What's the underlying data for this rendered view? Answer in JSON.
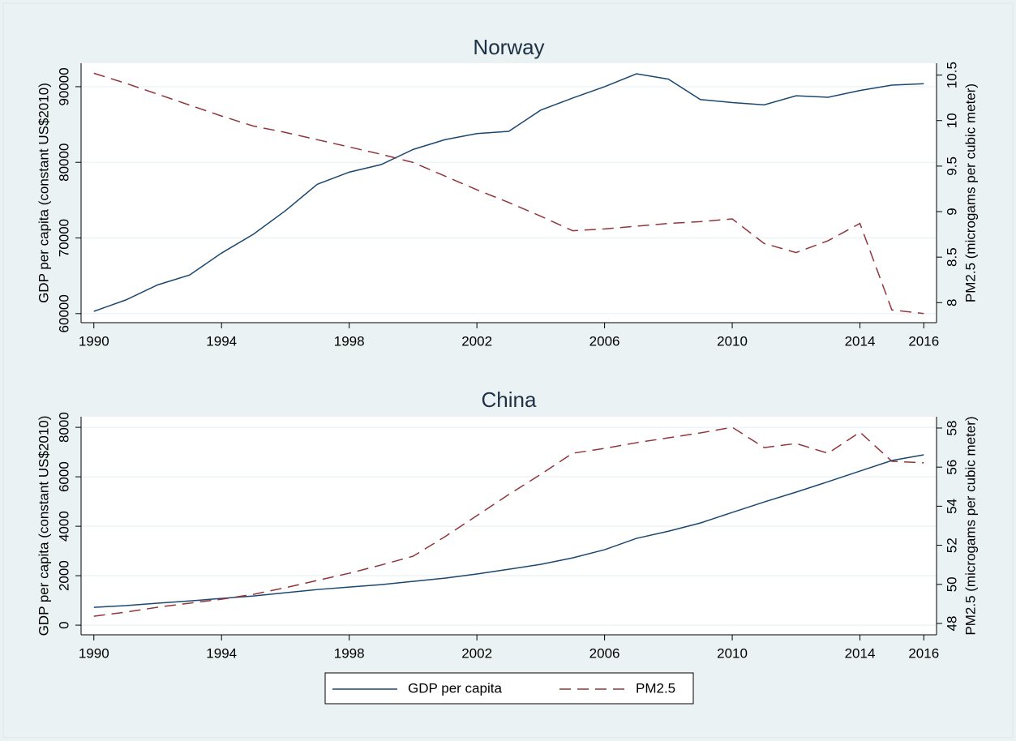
{
  "chart_data": [
    {
      "type": "line",
      "title": "Norway",
      "x": [
        1990,
        1991,
        1992,
        1993,
        1994,
        1995,
        1996,
        1997,
        1998,
        1999,
        2000,
        2001,
        2002,
        2003,
        2004,
        2005,
        2006,
        2007,
        2008,
        2009,
        2010,
        2011,
        2012,
        2013,
        2014,
        2015,
        2016
      ],
      "xlim": [
        1989.6,
        2016.4
      ],
      "xticks": [
        1990,
        1994,
        1998,
        2002,
        2006,
        2010,
        2014,
        2016
      ],
      "ylabel": "GDP per capita (constant US$2010)",
      "y2label": "PM2.5 (microgams per cubic meter)",
      "ylim": [
        58800,
        93100
      ],
      "yticks": [
        60000,
        70000,
        80000,
        90000
      ],
      "y2lim": [
        7.78,
        10.63
      ],
      "y2ticks": [
        8,
        8.5,
        9,
        9.5,
        10,
        10.5
      ],
      "grid": true,
      "series": [
        {
          "name": "GDP per capita",
          "color": "#1a476f",
          "style": "solid",
          "values": [
            60300,
            61800,
            63800,
            65100,
            68000,
            70500,
            73600,
            77100,
            78700,
            79700,
            81700,
            83000,
            83800,
            84100,
            86900,
            88500,
            90000,
            91700,
            91000,
            88300,
            87900,
            87600,
            88800,
            88600,
            89500,
            90200,
            90400
          ]
        },
        {
          "name": "PM2.5",
          "color": "#90353b",
          "style": "dashed",
          "axis": "y2",
          "values": [
            10.52,
            10.41,
            10.29,
            10.17,
            10.05,
            9.94,
            9.87,
            9.79,
            9.71,
            9.63,
            9.54,
            9.39,
            9.24,
            9.1,
            8.95,
            8.79,
            8.81,
            8.84,
            8.87,
            8.89,
            8.92,
            8.65,
            8.55,
            8.68,
            8.87,
            7.92,
            7.88
          ]
        }
      ]
    },
    {
      "type": "line",
      "title": "China",
      "x": [
        1990,
        1991,
        1992,
        1993,
        1994,
        1995,
        1996,
        1997,
        1998,
        1999,
        2000,
        2001,
        2002,
        2003,
        2004,
        2005,
        2006,
        2007,
        2008,
        2009,
        2010,
        2011,
        2012,
        2013,
        2014,
        2015,
        2016
      ],
      "xlim": [
        1989.6,
        2016.4
      ],
      "xticks": [
        1990,
        1994,
        1998,
        2002,
        2006,
        2010,
        2014,
        2016
      ],
      "ylabel": "GDP per capita (constant US$2010)",
      "y2label": "PM2.5 (microgams per cubic meter)",
      "ylim": [
        -390,
        8430
      ],
      "yticks": [
        0,
        2000,
        4000,
        6000,
        8000
      ],
      "y2lim": [
        47.42,
        58.58
      ],
      "y2ticks": [
        48,
        50,
        52,
        54,
        56,
        58
      ],
      "grid": true,
      "series": [
        {
          "color": "#1a476f",
          "style": "solid",
          "values": [
            720,
            790,
            890,
            980,
            1080,
            1180,
            1310,
            1440,
            1540,
            1640,
            1770,
            1900,
            2070,
            2260,
            2460,
            2720,
            3050,
            3510,
            3800,
            4130,
            4560,
            4980,
            5380,
            5800,
            6230,
            6660,
            6890
          ]
        },
        {
          "color": "#90353b",
          "style": "dashed",
          "axis": "y2",
          "values": [
            48.37,
            48.58,
            48.83,
            49.04,
            49.24,
            49.49,
            49.83,
            50.2,
            50.57,
            50.99,
            51.44,
            52.44,
            53.52,
            54.6,
            55.63,
            56.71,
            56.96,
            57.25,
            57.5,
            57.75,
            58.04,
            57.0,
            57.21,
            56.71,
            57.79,
            56.3,
            56.22
          ]
        }
      ]
    }
  ]
}
